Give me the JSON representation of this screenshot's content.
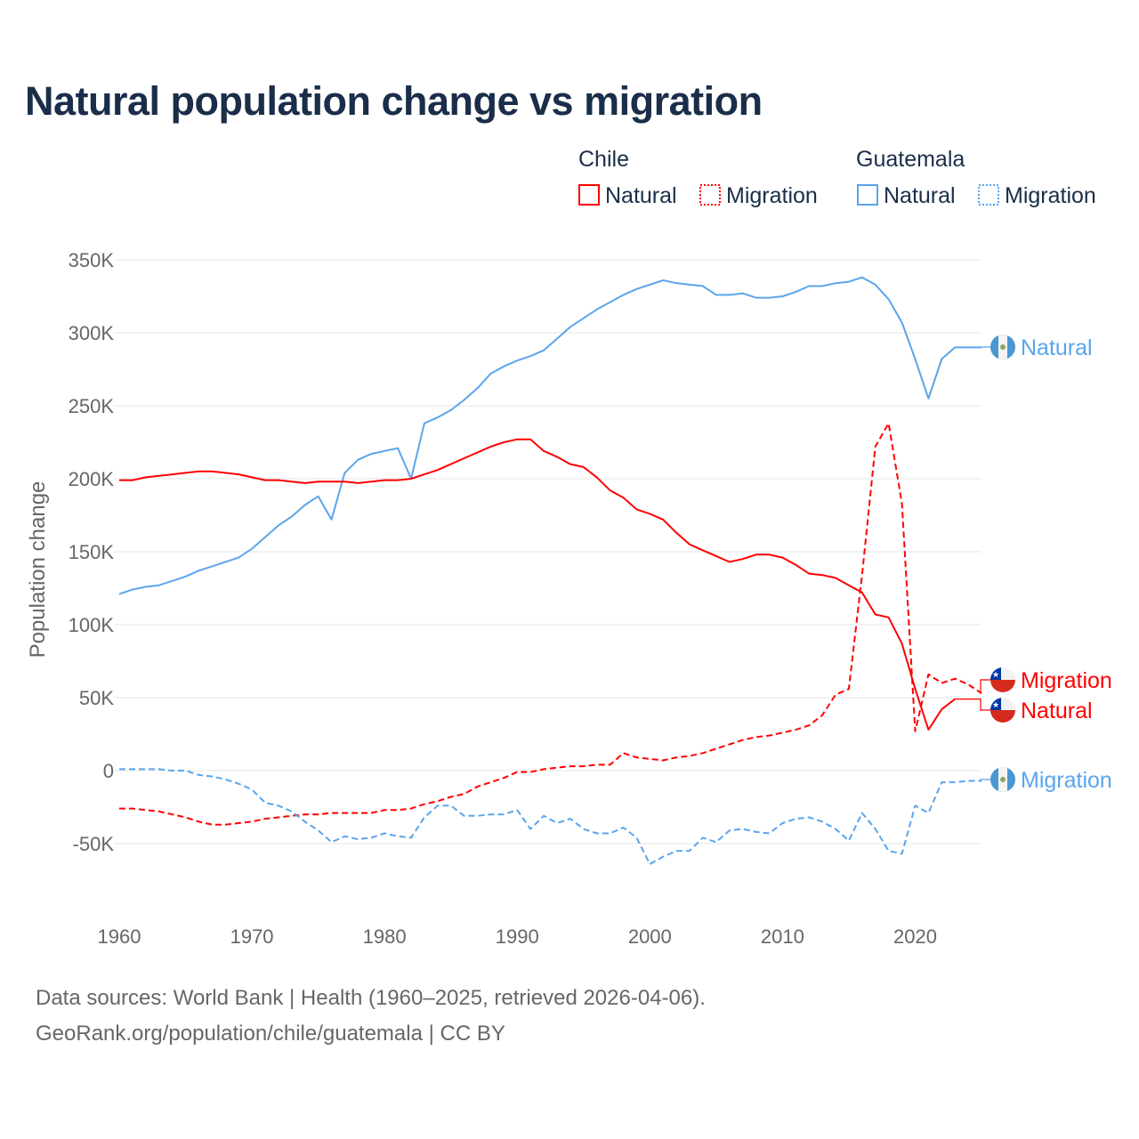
{
  "title": "Natural population change vs migration",
  "source_line1": "Data sources: World Bank | Health (1960–2025, retrieved 2026-04-06).",
  "source_line2": "GeoRank.org/population/chile/guatemala | CC BY",
  "colors": {
    "chile": "#ff0000",
    "guatemala": "#5aa5ec",
    "grid": "#e6e6e6",
    "text": "#1a2e4a"
  },
  "legend": [
    {
      "group": "Chile",
      "items": [
        "Natural",
        "Migration"
      ]
    },
    {
      "group": "Guatemala",
      "items": [
        "Natural",
        "Migration"
      ]
    }
  ],
  "chart_data": {
    "type": "line",
    "title": "Natural population change vs migration",
    "xlabel": "",
    "ylabel": "Population change",
    "xlim": [
      1960,
      2025
    ],
    "ylim": [
      -50000,
      350000
    ],
    "x_ticks": [
      1960,
      1970,
      1980,
      1990,
      2000,
      2010,
      2020
    ],
    "y_ticks": [
      {
        "value": 350000,
        "label": "350K"
      },
      {
        "value": 300000,
        "label": "300K"
      },
      {
        "value": 250000,
        "label": "250K"
      },
      {
        "value": 200000,
        "label": "200K"
      },
      {
        "value": 150000,
        "label": "150K"
      },
      {
        "value": 100000,
        "label": "100K"
      },
      {
        "value": 50000,
        "label": "50K"
      },
      {
        "value": 0,
        "label": "0"
      },
      {
        "value": -50000,
        "label": "-50K"
      }
    ],
    "grid": true,
    "legend_position": "top-right",
    "series": [
      {
        "name": "Guatemala Natural",
        "country": "Guatemala",
        "kind": "Natural",
        "style": "solid",
        "color": "#5aa5ec",
        "start_year": 1960,
        "end_label": "Natural",
        "values_thousands": [
          121,
          124,
          126,
          127,
          130,
          133,
          137,
          140,
          143,
          146,
          152,
          160,
          168,
          174,
          182,
          188,
          172,
          204,
          213,
          217,
          219,
          221,
          200,
          238,
          242,
          247,
          254,
          262,
          272,
          277,
          281,
          284,
          288,
          296,
          304,
          310,
          316,
          321,
          326,
          330,
          333,
          336,
          334,
          333,
          332,
          326,
          326,
          327,
          324,
          324,
          325,
          328,
          332,
          332,
          334,
          335,
          338,
          333,
          323,
          307,
          282,
          255,
          282,
          290,
          290,
          290
        ]
      },
      {
        "name": "Chile Natural",
        "country": "Chile",
        "kind": "Natural",
        "style": "solid",
        "color": "#ff0000",
        "start_year": 1960,
        "end_label": "Natural",
        "values_thousands": [
          199,
          199,
          201,
          202,
          203,
          204,
          205,
          205,
          204,
          203,
          201,
          199,
          199,
          198,
          197,
          198,
          198,
          198,
          197,
          198,
          199,
          199,
          200,
          203,
          206,
          210,
          214,
          218,
          222,
          225,
          227,
          227,
          219,
          215,
          210,
          208,
          201,
          192,
          187,
          179,
          176,
          172,
          163,
          155,
          151,
          147,
          143,
          145,
          148,
          148,
          146,
          141,
          135,
          134,
          132,
          127,
          122,
          107,
          105,
          87,
          56,
          28,
          42,
          49
        ]
      },
      {
        "name": "Chile Migration",
        "country": "Chile",
        "kind": "Migration",
        "style": "dashed",
        "color": "#ff0000",
        "start_year": 1960,
        "end_label": "Migration",
        "values_thousands": [
          -26,
          -26,
          -27,
          -28,
          -30,
          -32,
          -35,
          -37,
          -37,
          -36,
          -35,
          -33,
          -32,
          -31,
          -30,
          -30,
          -29,
          -29,
          -29,
          -29,
          -27,
          -27,
          -26,
          -23,
          -21,
          -18,
          -16,
          -11,
          -8,
          -5,
          -1,
          -1,
          1,
          2,
          3,
          3,
          4,
          4,
          12,
          9,
          8,
          7,
          9,
          10,
          12,
          15,
          18,
          21,
          23,
          24,
          26,
          28,
          31,
          38,
          52,
          56,
          134,
          222,
          238,
          183,
          27,
          66,
          60,
          63,
          59,
          53
        ]
      },
      {
        "name": "Guatemala Migration",
        "country": "Guatemala",
        "kind": "Migration",
        "style": "dashed",
        "color": "#5aa5ec",
        "start_year": 1960,
        "end_label": "Migration",
        "values_thousands": [
          1,
          1,
          1,
          1,
          0,
          0,
          -3,
          -4,
          -6,
          -9,
          -13,
          -22,
          -24,
          -28,
          -35,
          -41,
          -49,
          -45,
          -47,
          -46,
          -43,
          -45,
          -46,
          -32,
          -24,
          -24,
          -31,
          -31,
          -30,
          -30,
          -27,
          -40,
          -31,
          -36,
          -33,
          -40,
          -43,
          -43,
          -39,
          -46,
          -64,
          -59,
          -55,
          -55,
          -46,
          -49,
          -41,
          -40,
          -42,
          -43,
          -36,
          -33,
          -32,
          -35,
          -40,
          -48,
          -29,
          -40,
          -55,
          -57,
          -24,
          -29,
          -8,
          -8,
          -7,
          -7
        ]
      }
    ]
  }
}
